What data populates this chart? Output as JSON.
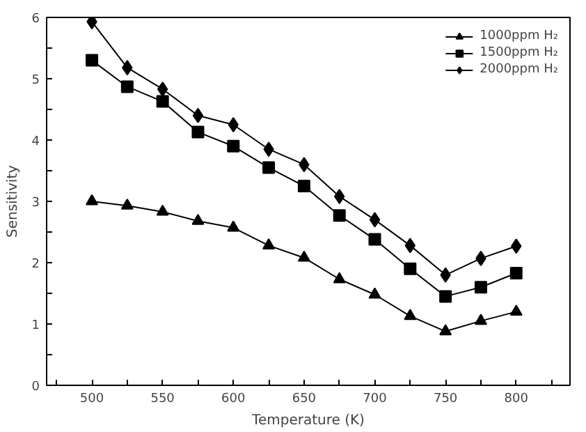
{
  "chart_data": {
    "type": "line",
    "xlabel": "Temperature (K)",
    "ylabel": "Sensitivity",
    "x": [
      500,
      525,
      550,
      575,
      600,
      625,
      650,
      675,
      700,
      725,
      750,
      775,
      800
    ],
    "series": [
      {
        "name": "1000ppm H₂",
        "color": "#000000",
        "marker": "triangle",
        "values": [
          3.0,
          2.93,
          2.83,
          2.68,
          2.57,
          2.28,
          2.08,
          1.73,
          1.48,
          1.13,
          0.88,
          1.05,
          1.2
        ]
      },
      {
        "name": "1500ppm H₂",
        "color": "#000000",
        "marker": "square",
        "values": [
          5.3,
          4.87,
          4.63,
          4.13,
          3.9,
          3.55,
          3.25,
          2.77,
          2.38,
          1.9,
          1.45,
          1.6,
          1.83
        ]
      },
      {
        "name": "2000ppm H₂",
        "color": "#000000",
        "marker": "diamond",
        "values": [
          5.93,
          5.18,
          4.83,
          4.4,
          4.25,
          3.85,
          3.6,
          3.08,
          2.7,
          2.28,
          1.8,
          2.07,
          2.27
        ]
      }
    ],
    "xlim": [
      468,
      838
    ],
    "xticks": [
      {
        "value": 475,
        "label": null
      },
      500,
      {
        "value": 525,
        "label": null
      },
      550,
      {
        "value": 575,
        "label": null
      },
      600,
      {
        "value": 625,
        "label": null
      },
      650,
      {
        "value": 675,
        "label": null
      },
      700,
      {
        "value": 725,
        "label": null
      },
      750,
      {
        "value": 775,
        "label": null
      },
      800,
      {
        "value": 825,
        "label": null
      }
    ],
    "ylim": [
      0,
      6
    ],
    "yticks": [
      0,
      {
        "value": 0.5,
        "label": null
      },
      1,
      {
        "value": 1.5,
        "label": null
      },
      2,
      {
        "value": 2.5,
        "label": null
      },
      3,
      {
        "value": 3.5,
        "label": null
      },
      4,
      {
        "value": 4.5,
        "label": null
      },
      5,
      {
        "value": 5.5,
        "label": null
      },
      6
    ],
    "grid": false,
    "legend": "top right",
    "line_style": "solid"
  }
}
